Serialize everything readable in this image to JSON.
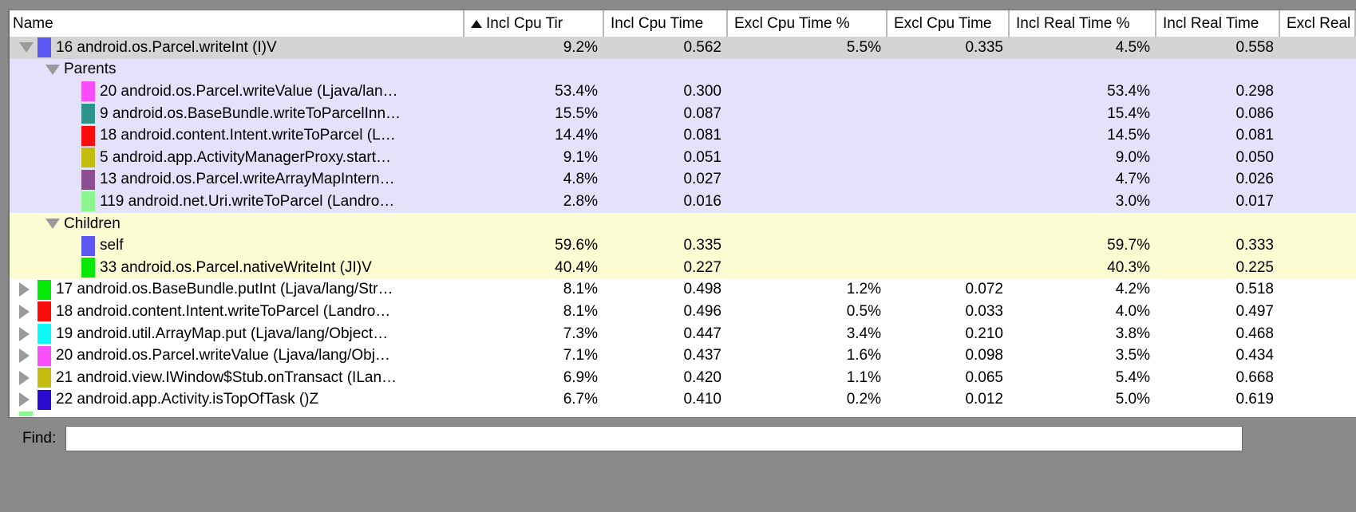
{
  "window": {
    "chrome_color": "#8a8a8a"
  },
  "profiler_table": {
    "columns": [
      {
        "label": "Name",
        "sorted": false
      },
      {
        "label": "Incl Cpu Tir",
        "sorted": true
      },
      {
        "label": "Incl Cpu Time",
        "sorted": false
      },
      {
        "label": "Excl Cpu Time %",
        "sorted": false
      },
      {
        "label": "Excl Cpu Time",
        "sorted": false
      },
      {
        "label": "Incl Real Time %",
        "sorted": false
      },
      {
        "label": "Incl Real Time",
        "sorted": false
      },
      {
        "label": "Excl Real",
        "sorted": false
      }
    ],
    "rows": [
      {
        "name": "16 android.os.Parcel.writeInt (I)V",
        "disclosure": "expanded",
        "swatch": "#5b57f2",
        "bg": "selected",
        "level": 0,
        "values": [
          "9.2%",
          "0.562",
          "5.5%",
          "0.335",
          "4.5%",
          "0.558",
          ""
        ]
      },
      {
        "name": "Parents",
        "disclosure": "expanded",
        "swatch": null,
        "bg": "parents",
        "level": 1,
        "values": [
          "",
          "",
          "",
          "",
          "",
          "",
          ""
        ]
      },
      {
        "name": "20 android.os.Parcel.writeValue (Ljava/lan…",
        "disclosure": null,
        "swatch": "#fa4dfa",
        "bg": "parents",
        "level": 2,
        "values": [
          "53.4%",
          "0.300",
          "",
          "",
          "53.4%",
          "0.298",
          ""
        ]
      },
      {
        "name": "9 android.os.BaseBundle.writeToParcelInn…",
        "disclosure": null,
        "swatch": "#2e948b",
        "bg": "parents",
        "level": 2,
        "values": [
          "15.5%",
          "0.087",
          "",
          "",
          "15.4%",
          "0.086",
          ""
        ]
      },
      {
        "name": "18 android.content.Intent.writeToParcel (L…",
        "disclosure": null,
        "swatch": "#fb0d0d",
        "bg": "parents",
        "level": 2,
        "values": [
          "14.4%",
          "0.081",
          "",
          "",
          "14.5%",
          "0.081",
          ""
        ]
      },
      {
        "name": "5 android.app.ActivityManagerProxy.start…",
        "disclosure": null,
        "swatch": "#c2bd0e",
        "bg": "parents",
        "level": 2,
        "values": [
          "9.1%",
          "0.051",
          "",
          "",
          "9.0%",
          "0.050",
          ""
        ]
      },
      {
        "name": "13 android.os.Parcel.writeArrayMapIntern…",
        "disclosure": null,
        "swatch": "#8e4f92",
        "bg": "parents",
        "level": 2,
        "values": [
          "4.8%",
          "0.027",
          "",
          "",
          "4.7%",
          "0.026",
          ""
        ]
      },
      {
        "name": "119 android.net.Uri.writeToParcel (Landro…",
        "disclosure": null,
        "swatch": "#8df58d",
        "bg": "parents",
        "level": 2,
        "values": [
          "2.8%",
          "0.016",
          "",
          "",
          "3.0%",
          "0.017",
          ""
        ]
      },
      {
        "name": "Children",
        "disclosure": "expanded",
        "swatch": null,
        "bg": "children",
        "level": 1,
        "values": [
          "",
          "",
          "",
          "",
          "",
          "",
          ""
        ]
      },
      {
        "name": "self",
        "disclosure": null,
        "swatch": "#5b57f2",
        "bg": "children",
        "level": 2,
        "values": [
          "59.6%",
          "0.335",
          "",
          "",
          "59.7%",
          "0.333",
          ""
        ]
      },
      {
        "name": "33 android.os.Parcel.nativeWriteInt (JI)V",
        "disclosure": null,
        "swatch": "#06e806",
        "bg": "children",
        "level": 2,
        "values": [
          "40.4%",
          "0.227",
          "",
          "",
          "40.3%",
          "0.225",
          ""
        ]
      },
      {
        "name": "17 android.os.BaseBundle.putInt (Ljava/lang/Str…",
        "disclosure": "collapsed",
        "swatch": "#06e806",
        "bg": "normal",
        "level": 0,
        "values": [
          "8.1%",
          "0.498",
          "1.2%",
          "0.072",
          "4.2%",
          "0.518",
          ""
        ]
      },
      {
        "name": "18 android.content.Intent.writeToParcel (Landro…",
        "disclosure": "collapsed",
        "swatch": "#fb0d0d",
        "bg": "normal",
        "level": 0,
        "values": [
          "8.1%",
          "0.496",
          "0.5%",
          "0.033",
          "4.0%",
          "0.497",
          ""
        ]
      },
      {
        "name": "19 android.util.ArrayMap.put (Ljava/lang/Object…",
        "disclosure": "collapsed",
        "swatch": "#0ef8f8",
        "bg": "normal",
        "level": 0,
        "values": [
          "7.3%",
          "0.447",
          "3.4%",
          "0.210",
          "3.8%",
          "0.468",
          ""
        ]
      },
      {
        "name": "20 android.os.Parcel.writeValue (Ljava/lang/Obj…",
        "disclosure": "collapsed",
        "swatch": "#fa50fa",
        "bg": "normal",
        "level": 0,
        "values": [
          "7.1%",
          "0.437",
          "1.6%",
          "0.098",
          "3.5%",
          "0.434",
          ""
        ]
      },
      {
        "name": "21 android.view.IWindow$Stub.onTransact (ILan…",
        "disclosure": "collapsed",
        "swatch": "#c2bd0e",
        "bg": "normal",
        "level": 0,
        "values": [
          "6.9%",
          "0.420",
          "1.1%",
          "0.065",
          "5.4%",
          "0.668",
          ""
        ]
      },
      {
        "name": "22 android.app.Activity.isTopOfTask ()Z",
        "disclosure": "collapsed",
        "swatch": "#2a0bd1",
        "bg": "normal",
        "level": 0,
        "values": [
          "6.7%",
          "0.410",
          "0.2%",
          "0.012",
          "5.0%",
          "0.619",
          ""
        ]
      },
      {
        "name": "",
        "disclosure": null,
        "swatch": "#8df58d",
        "bg": "normal",
        "level": 0,
        "partial": true,
        "values": []
      }
    ]
  },
  "find_bar": {
    "label": "Find:",
    "value": ""
  }
}
